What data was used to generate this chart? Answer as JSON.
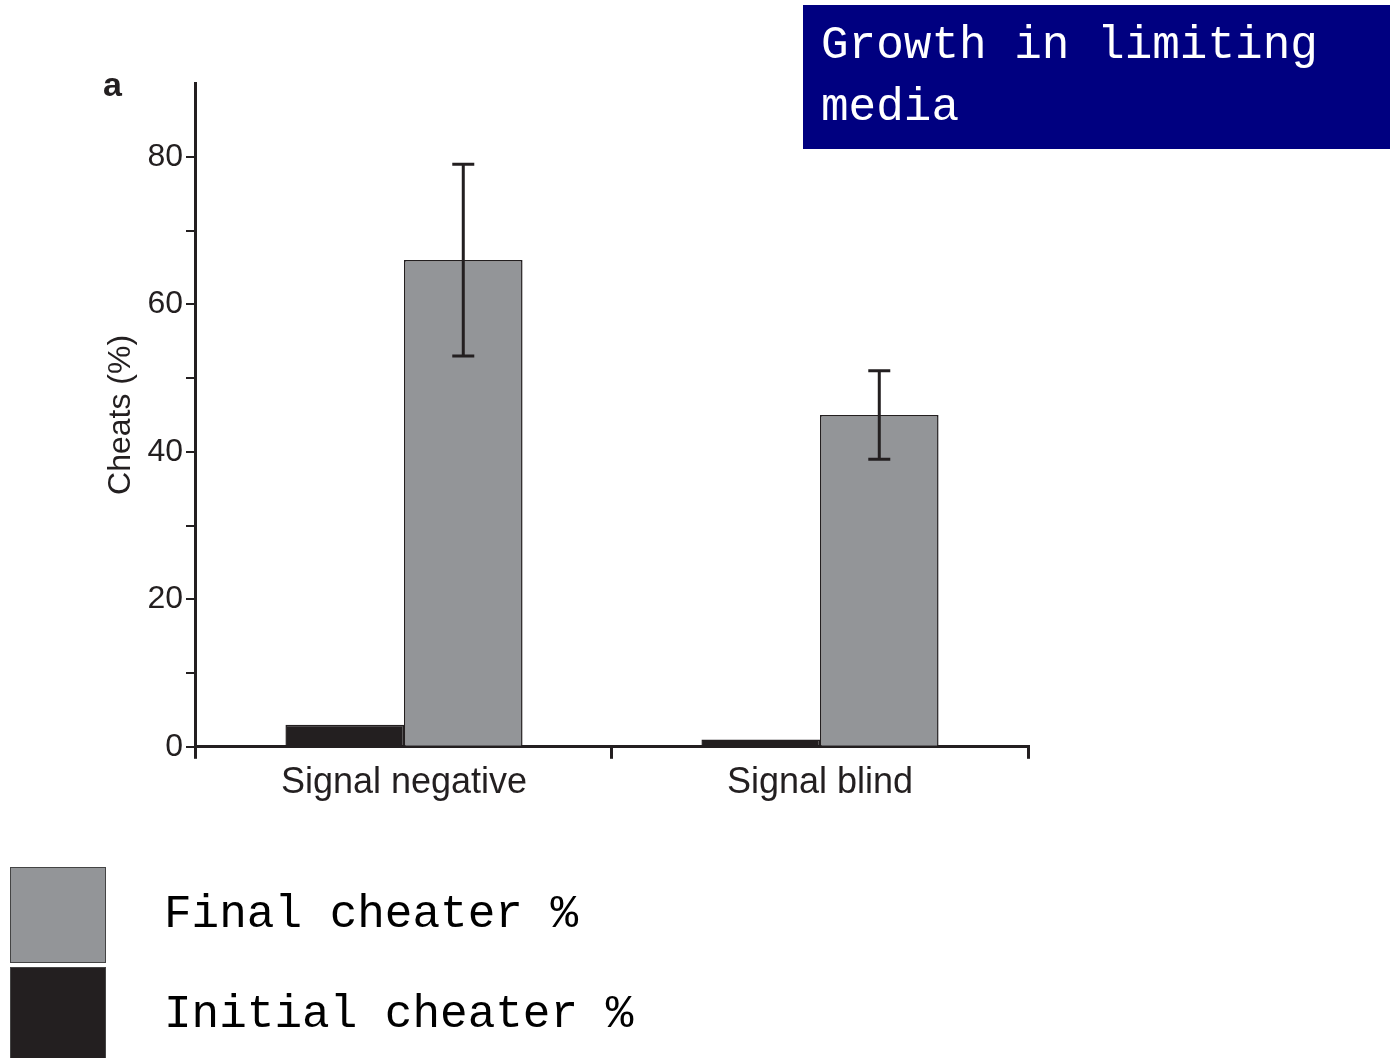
{
  "chart_data": {
    "type": "bar",
    "title": "Growth in limiting media",
    "ylabel": "Cheats (%)",
    "annotations": [
      "a"
    ],
    "categories": [
      "Signal negative",
      "Signal blind"
    ],
    "series": [
      {
        "name": "Initial cheater %",
        "color": "#231f20",
        "values": [
          3,
          1
        ]
      },
      {
        "name": "Final cheater %",
        "color": "#939598",
        "values": [
          66,
          45
        ],
        "errors": [
          [
            53,
            79
          ],
          [
            39,
            51
          ]
        ]
      }
    ],
    "ylim": [
      0,
      90
    ],
    "yticks": [
      0,
      {
        "value": 10,
        "label": null
      },
      20,
      {
        "value": 30,
        "label": null
      },
      40,
      {
        "value": 50,
        "label": null
      },
      60,
      {
        "value": 70,
        "label": null
      },
      80
    ],
    "grid": false,
    "legend": "bottom left"
  }
}
